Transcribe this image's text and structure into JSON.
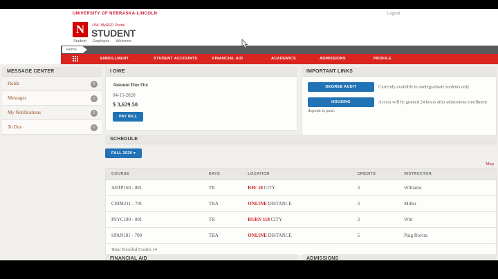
{
  "utility_bar": {
    "university": "UNIVERSITY OF NEBRASKA-LINCOLN",
    "logout": "Logout"
  },
  "header": {
    "n_mark": "N",
    "portal_label": "UNL MyRED Portal",
    "title": "STUDENT",
    "links": [
      {
        "label": "Student"
      },
      {
        "label": "Employee"
      },
      {
        "label": "Welcome"
      }
    ],
    "home_tab": "Home"
  },
  "nav": {
    "items": [
      {
        "label": "ENROLLMENT"
      },
      {
        "label": "STUDENT ACCOUNTS"
      },
      {
        "label": "FINANCIAL AID"
      },
      {
        "label": "ACADEMICS"
      },
      {
        "label": "ADMISSIONS"
      },
      {
        "label": "PROFILE"
      }
    ]
  },
  "sidebar": {
    "title": "MESSAGE CENTER",
    "items": [
      {
        "label": "Holds",
        "badge": "0"
      },
      {
        "label": "Messages",
        "badge": "0"
      },
      {
        "label": "My Notifications",
        "badge": "0"
      },
      {
        "label": "To Dos",
        "badge": "0"
      }
    ]
  },
  "i_owe": {
    "title": "I OWE",
    "amount_due_label": "Amount Due On:",
    "due_date": "04-15-2020",
    "amount": "$ 3,629.50",
    "pay_button": "PAY BILL"
  },
  "important_links": {
    "title": "IMPORTANT LINKS",
    "links": [
      {
        "button": "DEGREE AUDIT",
        "description": "Currently available to undergraduate students only"
      },
      {
        "button": "HOUSING",
        "description": "Access will be granted 24 hours after admissions enrollment deposit is paid."
      }
    ]
  },
  "schedule": {
    "title": "SCHEDULE",
    "term_button": "FALL 2020 ▾",
    "map_link": "Map",
    "columns": [
      "COURSE",
      "DAYS",
      "LOCATION",
      "CREDITS",
      "INSTRUCTOR"
    ],
    "rows": [
      {
        "course": "ARTP160 - 001",
        "days": "TR",
        "location_link": "RH: 10",
        "location_rest": "CITY",
        "credits": "3",
        "instructor": "Williams"
      },
      {
        "course": "CRIM211 - 701",
        "days": "TBA",
        "location_link": "ONLINE",
        "location_rest": "DISTANCE",
        "credits": "3",
        "instructor": "Miller"
      },
      {
        "course": "PSYC180 - 001",
        "days": "TR",
        "location_link": "BURN 118",
        "location_rest": "CITY",
        "credits": "3",
        "instructor": "Witt"
      },
      {
        "course": "SPAN101 - 700",
        "days": "TBA",
        "location_link": "ONLINE",
        "location_rest": "DISTANCE",
        "credits": "5",
        "instructor": "Puig Rovira"
      }
    ],
    "footer": "Total Enrolled Credits 14"
  },
  "bottom_sections": {
    "financial_aid": "FINANCIAL AID",
    "admissions": "ADMISSIONS"
  },
  "colors": {
    "brand_red": "#d9241f",
    "university_red": "#c41230",
    "button_blue": "#2173b5",
    "link_rust": "#9c4a26",
    "content_bg": "#f0efec"
  }
}
